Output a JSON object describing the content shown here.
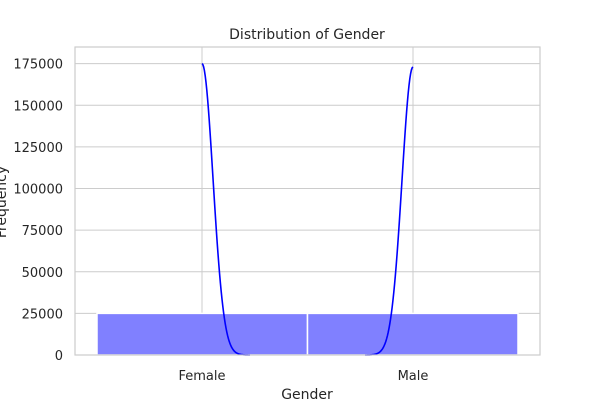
{
  "chart_data": {
    "type": "bar",
    "title": "Distribution of Gender",
    "xlabel": "Gender",
    "ylabel": "Frequency",
    "categories": [
      "Female",
      "Male"
    ],
    "values": [
      25000,
      25000
    ],
    "ylim": [
      0,
      185000
    ],
    "yticks": [
      "0",
      "25000",
      "50000",
      "75000",
      "100000",
      "125000",
      "150000",
      "175000"
    ],
    "grid": true,
    "bar_color": "#8080ff",
    "kde": {
      "color": "#0000ff",
      "peaks": [
        {
          "category": "Female",
          "value": 175000
        },
        {
          "category": "Male",
          "value": 173000
        }
      ]
    }
  }
}
